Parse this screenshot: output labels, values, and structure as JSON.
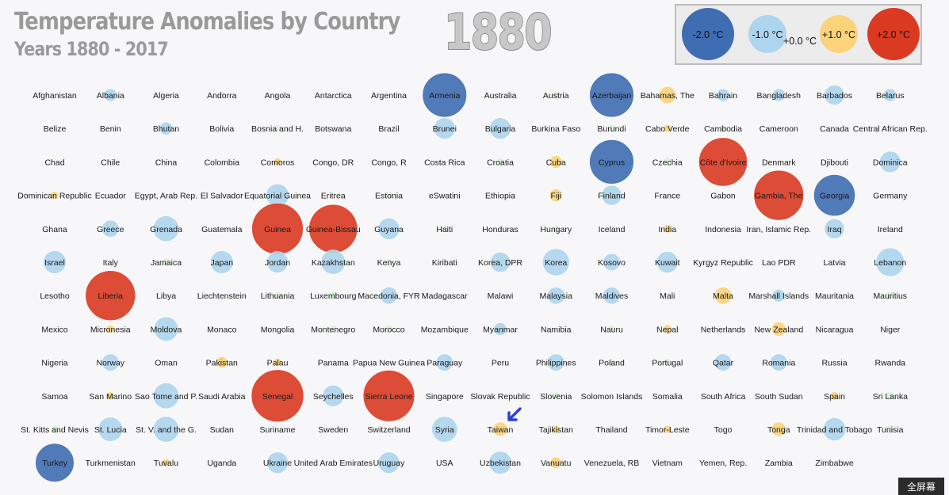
{
  "header": {
    "title": "Temperature Anomalies by Country",
    "subtitle": "Years 1880 - 2017",
    "year": "1880"
  },
  "legend": [
    {
      "label": "-2.0 °C",
      "value": -2.0
    },
    {
      "label": "-1.0 °C",
      "value": -1.0
    },
    {
      "label": "+0.0 °C",
      "value": 0.0
    },
    {
      "label": "+1.0 °C",
      "value": 1.0
    },
    {
      "label": "+2.0 °C",
      "value": 2.0
    }
  ],
  "colors": {
    "strong_cold": "#3f6db2",
    "cold": "#aed5ef",
    "neutral": "#dff0df",
    "warm": "#fbd37a",
    "strong_warm": "#db3a22"
  },
  "caption_button": "全屏幕",
  "chart_data": {
    "type": "scatter",
    "title": "Temperature Anomalies by Country",
    "subtitle": "Years 1880 - 2017",
    "year": "1880",
    "unit": "°C",
    "countries": [
      [
        "Afghanistan",
        0.0
      ],
      [
        "Albania",
        -0.45
      ],
      [
        "Algeria",
        0.0
      ],
      [
        "Andorra",
        0.15
      ],
      [
        "Angola",
        0.0
      ],
      [
        "Antarctica",
        0.0
      ],
      [
        "Argentina",
        0.0
      ],
      [
        "Armenia",
        -1.55
      ],
      [
        "Australia",
        0.0
      ],
      [
        "Austria",
        0.1
      ],
      [
        "Azerbaijan",
        -1.55
      ],
      [
        "Bahamas, The",
        0.6
      ],
      [
        "Bahrain",
        -0.45
      ],
      [
        "Bangladesh",
        -0.45
      ],
      [
        "Barbados",
        -0.7
      ],
      [
        "Belarus",
        -0.45
      ],
      [
        "Belize",
        0.0
      ],
      [
        "Benin",
        0.0
      ],
      [
        "Bhutan",
        -0.45
      ],
      [
        "Bolivia",
        0.0
      ],
      [
        "Bosnia and H.",
        0.15
      ],
      [
        "Botswana",
        0.0
      ],
      [
        "Brazil",
        0.0
      ],
      [
        "Brunei",
        -0.75
      ],
      [
        "Bulgaria",
        -0.75
      ],
      [
        "Burkina Faso",
        0.0
      ],
      [
        "Burundi",
        -0.3
      ],
      [
        "Cabo Verde",
        0.2
      ],
      [
        "Cambodia",
        -0.3
      ],
      [
        "Cameroon",
        0.0
      ],
      [
        "Canada",
        0.0
      ],
      [
        "Central African Rep.",
        0.0
      ],
      [
        "Chad",
        0.0
      ],
      [
        "Chile",
        0.0
      ],
      [
        "China",
        0.0
      ],
      [
        "Colombia",
        0.0
      ],
      [
        "Comoros",
        0.25
      ],
      [
        "Congo, DR",
        0.0
      ],
      [
        "Congo, R",
        0.0
      ],
      [
        "Costa Rica",
        0.0
      ],
      [
        "Croatia",
        -0.3
      ],
      [
        "Cuba",
        0.45
      ],
      [
        "Cyprus",
        -1.55
      ],
      [
        "Czechia",
        -0.3
      ],
      [
        "Côte d'Ivoire",
        1.7
      ],
      [
        "Denmark",
        0.0
      ],
      [
        "Djibouti",
        0.0
      ],
      [
        "Dominica",
        -0.75
      ],
      [
        "Dominican Republic",
        0.2
      ],
      [
        "Ecuador",
        0.0
      ],
      [
        "Egypt, Arab Rep.",
        0.0
      ],
      [
        "El Salvador",
        0.0
      ],
      [
        "Equatorial Guinea",
        -0.8
      ],
      [
        "Eritrea",
        0.0
      ],
      [
        "Estonia",
        -0.3
      ],
      [
        "eSwatini",
        0.0
      ],
      [
        "Ethiopia",
        0.0
      ],
      [
        "Fiji",
        0.45
      ],
      [
        "Finland",
        -0.7
      ],
      [
        "France",
        0.0
      ],
      [
        "Gabon",
        0.0
      ],
      [
        "Gambia, The",
        1.75
      ],
      [
        "Georgia",
        -1.45
      ],
      [
        "Germany",
        0.0
      ],
      [
        "Ghana",
        0.0
      ],
      [
        "Greece",
        -0.6
      ],
      [
        "Grenada",
        -0.9
      ],
      [
        "Guatemala",
        0.0
      ],
      [
        "Guinea",
        1.8
      ],
      [
        "Guinea-Bissau",
        1.7
      ],
      [
        "Guyana",
        -0.75
      ],
      [
        "Haiti",
        0.15
      ],
      [
        "Honduras",
        0.0
      ],
      [
        "Hungary",
        0.15
      ],
      [
        "Iceland",
        0.0
      ],
      [
        "India",
        0.3
      ],
      [
        "Indonesia",
        0.0
      ],
      [
        "Iran, Islamic Rep.",
        0.0
      ],
      [
        "Iraq",
        -0.7
      ],
      [
        "Ireland",
        0.0
      ],
      [
        "Israel",
        -0.8
      ],
      [
        "Italy",
        0.0
      ],
      [
        "Jamaica",
        -0.3
      ],
      [
        "Japan",
        -0.8
      ],
      [
        "Jordan",
        -0.75
      ],
      [
        "Kazakhstan",
        -0.85
      ],
      [
        "Kenya",
        0.15
      ],
      [
        "Kiribati",
        0.0
      ],
      [
        "Korea, DPR",
        -0.7
      ],
      [
        "Korea",
        -0.95
      ],
      [
        "Kosovo",
        -0.6
      ],
      [
        "Kuwait",
        -0.75
      ],
      [
        "Kyrgyz Republic",
        0.0
      ],
      [
        "Lao PDR",
        0.0
      ],
      [
        "Latvia",
        0.0
      ],
      [
        "Lebanon",
        -1.0
      ],
      [
        "Lesotho",
        0.0
      ],
      [
        "Liberia",
        1.75
      ],
      [
        "Libya",
        0.0
      ],
      [
        "Liechtenstein",
        0.0
      ],
      [
        "Lithuania",
        -0.3
      ],
      [
        "Luxembourg",
        -0.3
      ],
      [
        "Macedonia, FYR",
        -0.6
      ],
      [
        "Madagascar",
        0.0
      ],
      [
        "Malawi",
        0.0
      ],
      [
        "Malaysia",
        -0.6
      ],
      [
        "Maldives",
        -0.6
      ],
      [
        "Mali",
        0.0
      ],
      [
        "Malta",
        0.6
      ],
      [
        "Marshall Islands",
        -0.45
      ],
      [
        "Mauritania",
        0.0
      ],
      [
        "Mauritius",
        -0.3
      ],
      [
        "Mexico",
        0.0
      ],
      [
        "Micronesia",
        0.2
      ],
      [
        "Moldova",
        -0.85
      ],
      [
        "Monaco",
        0.0
      ],
      [
        "Mongolia",
        0.0
      ],
      [
        "Montenegro",
        -0.3
      ],
      [
        "Morocco",
        -0.3
      ],
      [
        "Mozambique",
        0.0
      ],
      [
        "Myanmar",
        -0.45
      ],
      [
        "Namibia",
        0.0
      ],
      [
        "Nauru",
        0.15
      ],
      [
        "Nepal",
        0.3
      ],
      [
        "Netherlands",
        0.0
      ],
      [
        "New Zealand",
        0.5
      ],
      [
        "Nicaragua",
        0.0
      ],
      [
        "Niger",
        0.0
      ],
      [
        "Nigeria",
        0.0
      ],
      [
        "Norway",
        -0.6
      ],
      [
        "Oman",
        0.0
      ],
      [
        "Pakistan",
        0.4
      ],
      [
        "Palau",
        0.25
      ],
      [
        "Panama",
        0.0
      ],
      [
        "Papua New Guinea",
        0.0
      ],
      [
        "Paraguay",
        -0.6
      ],
      [
        "Peru",
        0.0
      ],
      [
        "Philippines",
        -0.6
      ],
      [
        "Poland",
        0.15
      ],
      [
        "Portugal",
        0.15
      ],
      [
        "Qatar",
        -0.6
      ],
      [
        "Romania",
        -0.6
      ],
      [
        "Russia",
        0.0
      ],
      [
        "Rwanda",
        0.0
      ],
      [
        "Samoa",
        0.0
      ],
      [
        "San Marino",
        0.2
      ],
      [
        "Sao Tome and P.",
        -0.9
      ],
      [
        "Saudi Arabia",
        0.0
      ],
      [
        "Senegal",
        2.0
      ],
      [
        "Seychelles",
        -0.75
      ],
      [
        "Sierra Leone",
        1.8
      ],
      [
        "Singapore",
        0.0
      ],
      [
        "Slovak Republic",
        0.0
      ],
      [
        "Slovenia",
        0.15
      ],
      [
        "Solomon Islands",
        0.0
      ],
      [
        "Somalia",
        0.0
      ],
      [
        "South Africa",
        0.0
      ],
      [
        "South Sudan",
        0.0
      ],
      [
        "Spain",
        0.3
      ],
      [
        "Sri Lanka",
        -0.3
      ],
      [
        "St. Kitts and Nevis",
        -0.3
      ],
      [
        "St. Lucia",
        -0.85
      ],
      [
        "St. V. and the G.",
        -0.9
      ],
      [
        "Sudan",
        0.0
      ],
      [
        "Suriname",
        0.0
      ],
      [
        "Sweden",
        0.0
      ],
      [
        "Switzerland",
        0.0
      ],
      [
        "Syria",
        -0.9
      ],
      [
        "Taiwan",
        0.5
      ],
      [
        "Tajikistan",
        0.2
      ],
      [
        "Thailand",
        0.0
      ],
      [
        "Timor-Leste",
        0.2
      ],
      [
        "Togo",
        0.0
      ],
      [
        "Tonga",
        0.5
      ],
      [
        "Trinidad and Tobago",
        -0.8
      ],
      [
        "Tunisia",
        -0.3
      ],
      [
        "Turkey",
        -1.35
      ],
      [
        "Turkmenistan",
        0.0
      ],
      [
        "Tuvalu",
        0.2
      ],
      [
        "Uganda",
        0.0
      ],
      [
        "Ukraine",
        -0.75
      ],
      [
        "United Arab Emirates",
        0.0
      ],
      [
        "Uruguay",
        -0.75
      ],
      [
        "USA",
        0.0
      ],
      [
        "Uzbekistan",
        -0.8
      ],
      [
        "Vanuatu",
        0.4
      ],
      [
        "Venezuela, RB",
        0.0
      ],
      [
        "Vietnam",
        0.0
      ],
      [
        "Yemen, Rep.",
        0.0
      ],
      [
        "Zambia",
        0.0
      ],
      [
        "Zimbabwe",
        0.0
      ]
    ]
  }
}
